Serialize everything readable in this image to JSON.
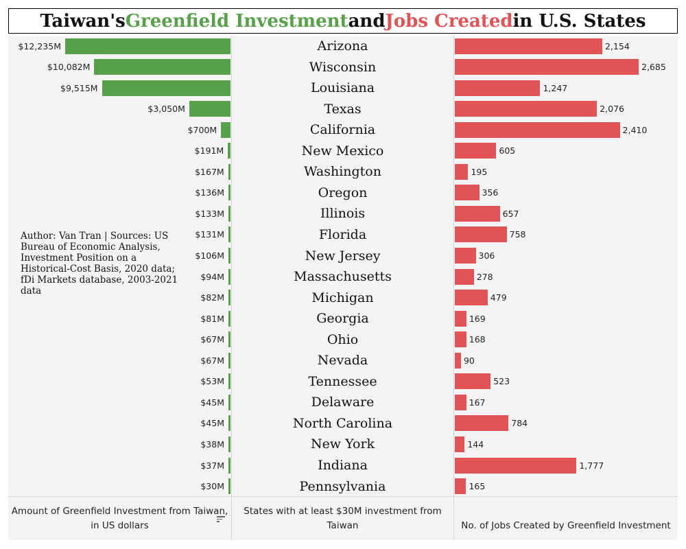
{
  "title": {
    "part1": "Taiwan's ",
    "part2": "Greenfield Investment",
    "part3": " and ",
    "part4": "Jobs Created",
    "part5": " in U.S. States"
  },
  "colors": {
    "investment": "#58a04a",
    "jobs": "#e05458",
    "background": "#f4f4f4"
  },
  "source_note": "Author: Van Tran | Sources: US Bureau of Economic Analysis, Investment Position on a Historical-Cost Basis, 2020 data; fDi Markets database, 2003-2021 data",
  "footer": {
    "investment_label": "Amount of Greenfield Investment from Taiwan, in US dollars",
    "states_label": "States with at least $30M investment from Taiwan",
    "jobs_label": "No. of Jobs Created by Greenfield Investment",
    "sort_icon": "sort-descending-icon"
  },
  "chart_data": {
    "type": "bar",
    "categories": [
      "Arizona",
      "Wisconsin",
      "Louisiana",
      "Texas",
      "California",
      "New Mexico",
      "Washington",
      "Oregon",
      "Illinois",
      "Florida",
      "New Jersey",
      "Massachusetts",
      "Michigan",
      "Georgia",
      "Ohio",
      "Nevada",
      "Tennessee",
      "Delaware",
      "North Carolina",
      "New York",
      "Indiana",
      "Pennsylvania"
    ],
    "series": [
      {
        "values": [
          12235,
          10082,
          9515,
          3050,
          700,
          191,
          167,
          136,
          133,
          131,
          106,
          94,
          82,
          81,
          67,
          67,
          53,
          45,
          45,
          38,
          37,
          30
        ],
        "labels": [
          "$12,235M",
          "$10,082M",
          "$9,515M",
          "$3,050M",
          "$700M",
          "$191M",
          "$167M",
          "$136M",
          "$133M",
          "$131M",
          "$106M",
          "$94M",
          "$82M",
          "$81M",
          "$67M",
          "$67M",
          "$53M",
          "$45M",
          "$45M",
          "$38M",
          "$37M",
          "$30M"
        ]
      },
      {
        "values": [
          2154,
          2685,
          1247,
          2076,
          2410,
          605,
          195,
          356,
          657,
          758,
          306,
          278,
          479,
          169,
          168,
          90,
          523,
          167,
          784,
          144,
          1777,
          165
        ],
        "labels": [
          "2,154",
          "2,685",
          "1,247",
          "2,076",
          "2,410",
          "605",
          "195",
          "356",
          "657",
          "758",
          "306",
          "278",
          "479",
          "169",
          "168",
          "90",
          "523",
          "167",
          "784",
          "144",
          "1,777",
          "165"
        ]
      }
    ]
  }
}
